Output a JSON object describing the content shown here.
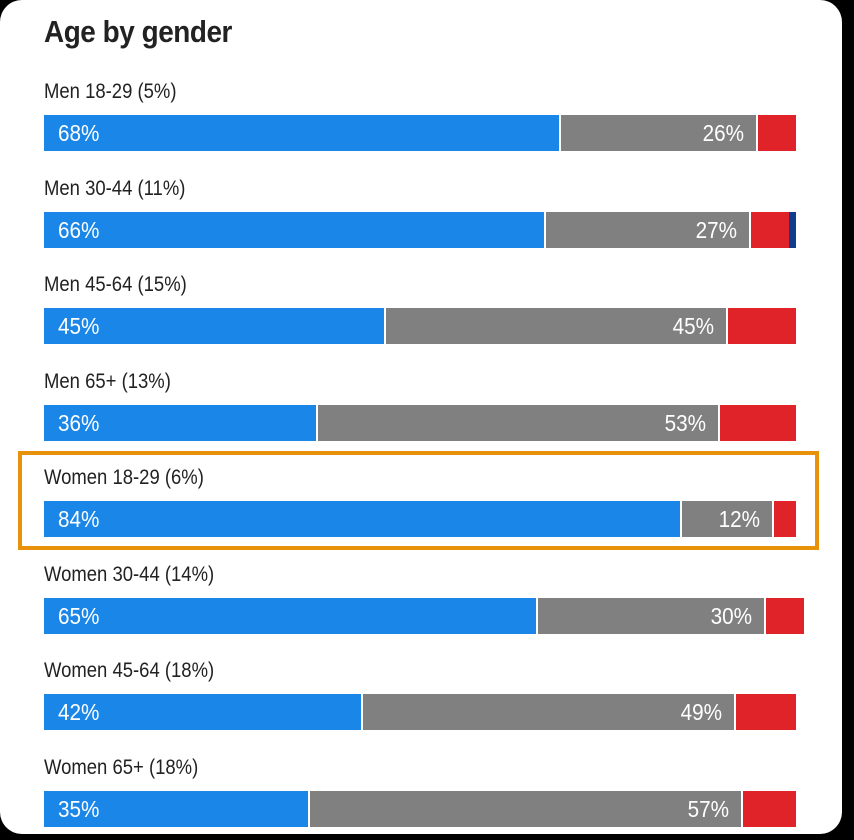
{
  "chart_data": {
    "type": "bar",
    "orientation": "horizontal",
    "stacked": true,
    "title": "Age by gender",
    "categories": [
      "Men 18-29 (5%)",
      "Men 30-44 (11%)",
      "Men 45-64 (15%)",
      "Men 65+ (13%)",
      "Women 18-29 (6%)",
      "Women 30-44 (14%)",
      "Women 45-64 (18%)",
      "Women 65+ (18%)"
    ],
    "series": [
      {
        "color": "#1a86e8",
        "values": [
          68,
          66,
          45,
          36,
          84,
          65,
          42,
          35
        ],
        "labels": [
          "68%",
          "66%",
          "45%",
          "36%",
          "84%",
          "65%",
          "42%",
          "35%"
        ]
      },
      {
        "color": "#808080",
        "values": [
          26,
          27,
          45,
          53,
          12,
          30,
          49,
          57
        ],
        "labels": [
          "26%",
          "27%",
          "45%",
          "53%",
          "12%",
          "30%",
          "49%",
          "57%"
        ]
      },
      {
        "color": "#e02329",
        "values": [
          5,
          5,
          9,
          10,
          3,
          5,
          8,
          7
        ]
      },
      {
        "color": "#0d3d8c",
        "values": [
          0,
          1,
          0,
          0,
          0,
          0,
          0,
          0
        ]
      }
    ],
    "xlim": [
      0,
      100
    ],
    "highlighted_category": "Women 18-29 (6%)",
    "highlight_color": "#e8920c"
  }
}
